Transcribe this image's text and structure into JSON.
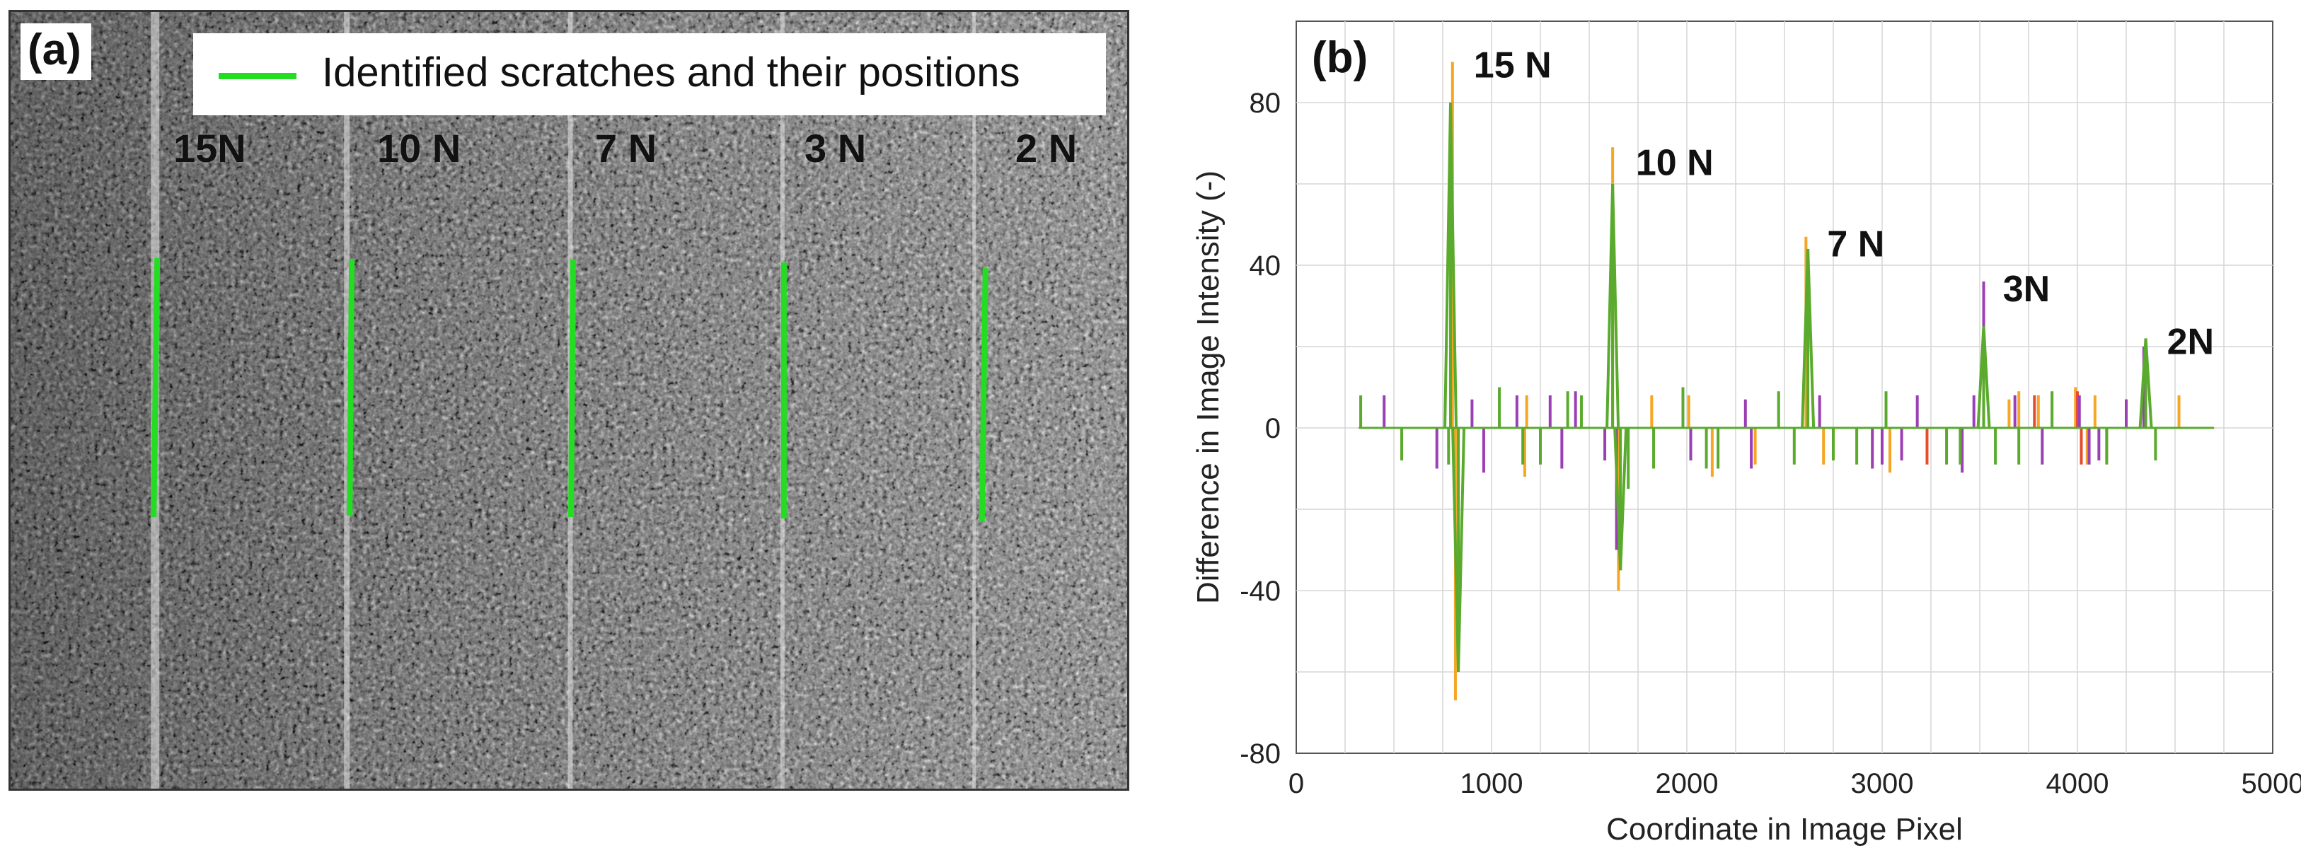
{
  "panel_a": {
    "label": "(a)",
    "legend_text": "Identified scratches and their positions",
    "legend_color": "#22dd22",
    "scratch_color": "#22dd22",
    "force_labels": [
      "15N",
      "10 N",
      "7 N",
      "3 N",
      "2 N"
    ]
  },
  "chart_data": {
    "type": "line",
    "panel_label": "(b)",
    "xlabel": "Coordinate in Image Pixel",
    "ylabel": "Difference in Image Intensity (-)",
    "xlim": [
      0,
      5000
    ],
    "ylim": [
      -80,
      100
    ],
    "xticks": [
      0,
      1000,
      2000,
      3000,
      4000,
      5000
    ],
    "yticks": [
      80,
      40,
      0,
      -40,
      -80
    ],
    "grid": true,
    "peak_labels": [
      {
        "text": "15 N",
        "x": 800,
        "y": 90
      },
      {
        "text": "10 N",
        "x": 1630,
        "y": 66
      },
      {
        "text": "7 N",
        "x": 2610,
        "y": 46
      },
      {
        "text": "3N",
        "x": 3510,
        "y": 35
      },
      {
        "text": "2N",
        "x": 4350,
        "y": 22
      }
    ],
    "series": [
      {
        "name": "orange",
        "color": "#f5a623",
        "spikes": [
          [
            800,
            90
          ],
          [
            815,
            -67
          ],
          [
            1620,
            69
          ],
          [
            1650,
            -40
          ],
          [
            2610,
            47
          ],
          [
            1170,
            -12
          ],
          [
            1180,
            8
          ],
          [
            1820,
            8
          ],
          [
            2010,
            8
          ],
          [
            2130,
            -12
          ],
          [
            2350,
            -9
          ],
          [
            2700,
            -9
          ],
          [
            3040,
            -11
          ],
          [
            3650,
            7
          ],
          [
            3700,
            9
          ],
          [
            3800,
            8
          ],
          [
            3990,
            10
          ],
          [
            4050,
            -9
          ],
          [
            4090,
            8
          ],
          [
            4520,
            8
          ]
        ]
      },
      {
        "name": "red",
        "color": "#e84c2e",
        "spikes": [
          [
            3230,
            -9
          ],
          [
            3780,
            8
          ],
          [
            4000,
            9
          ],
          [
            4020,
            -9
          ],
          [
            4150,
            -8
          ],
          [
            4250,
            7
          ]
        ]
      },
      {
        "name": "purple",
        "color": "#9b3fb5",
        "spikes": [
          [
            450,
            8
          ],
          [
            720,
            -10
          ],
          [
            900,
            7
          ],
          [
            960,
            -11
          ],
          [
            1130,
            8
          ],
          [
            1300,
            8
          ],
          [
            1360,
            -10
          ],
          [
            1430,
            9
          ],
          [
            1580,
            -8
          ],
          [
            1640,
            -30
          ],
          [
            2020,
            -8
          ],
          [
            2300,
            7
          ],
          [
            2330,
            -10
          ],
          [
            2680,
            8
          ],
          [
            2950,
            -10
          ],
          [
            3000,
            -9
          ],
          [
            3100,
            -8
          ],
          [
            3180,
            8
          ],
          [
            3410,
            -11
          ],
          [
            3470,
            8
          ],
          [
            3520,
            36
          ],
          [
            3680,
            8
          ],
          [
            3820,
            -9
          ],
          [
            4010,
            8
          ],
          [
            4060,
            -9
          ],
          [
            4110,
            -8
          ],
          [
            4250,
            7
          ],
          [
            4340,
            20
          ]
        ]
      },
      {
        "name": "green",
        "color": "#5aaa2e",
        "spikes": [
          [
            330,
            8
          ],
          [
            540,
            -8
          ],
          [
            780,
            -9
          ],
          [
            790,
            80
          ],
          [
            830,
            -60
          ],
          [
            1040,
            10
          ],
          [
            1160,
            -9
          ],
          [
            1250,
            -9
          ],
          [
            1390,
            9
          ],
          [
            1460,
            8
          ],
          [
            1620,
            60
          ],
          [
            1660,
            -35
          ],
          [
            1700,
            -15
          ],
          [
            1830,
            -10
          ],
          [
            1980,
            10
          ],
          [
            2100,
            -10
          ],
          [
            2160,
            -10
          ],
          [
            2470,
            9
          ],
          [
            2550,
            -9
          ],
          [
            2620,
            44
          ],
          [
            2750,
            -8
          ],
          [
            2870,
            -9
          ],
          [
            3020,
            9
          ],
          [
            3330,
            -9
          ],
          [
            3400,
            -9
          ],
          [
            3520,
            25
          ],
          [
            3580,
            -9
          ],
          [
            3700,
            -9
          ],
          [
            3870,
            9
          ],
          [
            4150,
            -9
          ],
          [
            4350,
            22
          ],
          [
            4400,
            -8
          ]
        ]
      }
    ]
  }
}
